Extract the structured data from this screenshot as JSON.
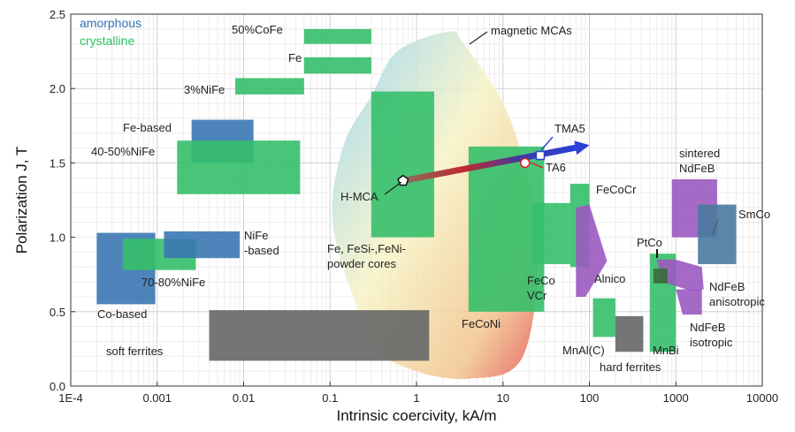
{
  "chart_data": {
    "type": "scatter",
    "xlabel": "Intrinsic coercivity, kA/m",
    "ylabel": "Polarization J, T",
    "xscale": "log",
    "xlim": [
      0.0001,
      10000
    ],
    "ylim": [
      0,
      2.5
    ],
    "grid": true,
    "x_ticks": [
      {
        "v": 0.0001,
        "label": "1E-4"
      },
      {
        "v": 0.001,
        "label": "0.001"
      },
      {
        "v": 0.01,
        "label": "0.01"
      },
      {
        "v": 0.1,
        "label": "0.1"
      },
      {
        "v": 1,
        "label": "1"
      },
      {
        "v": 10,
        "label": "10"
      },
      {
        "v": 100,
        "label": "100"
      },
      {
        "v": 1000,
        "label": "1000"
      },
      {
        "v": 10000,
        "label": "10000"
      }
    ],
    "y_ticks": [
      {
        "v": 0.0,
        "label": "0.0"
      },
      {
        "v": 0.5,
        "label": "0.5"
      },
      {
        "v": 1.0,
        "label": "1.0"
      },
      {
        "v": 1.5,
        "label": "1.5"
      },
      {
        "v": 2.0,
        "label": "2.0"
      },
      {
        "v": 2.5,
        "label": "2.5"
      }
    ],
    "legend": [
      {
        "label": "amorphous",
        "color": "#2f73b5"
      },
      {
        "label": "crystalline",
        "color": "#2fbf5f"
      }
    ],
    "colors": {
      "amorphous": "#3a78b2",
      "crystalline": "#35bf6a",
      "hard_ferrite": "#666666",
      "rare_earth": "#9b59c0",
      "steelblue": "#4a7aa0"
    },
    "regions": [
      {
        "id": "50cofe",
        "label": "50%CoFe",
        "color": "crystalline",
        "x": [
          0.05,
          0.3
        ],
        "y": [
          2.3,
          2.4
        ]
      },
      {
        "id": "fe",
        "label": "Fe",
        "color": "crystalline",
        "x": [
          0.05,
          0.3
        ],
        "y": [
          2.1,
          2.21
        ]
      },
      {
        "id": "3nife",
        "label": "3%NiFe",
        "color": "crystalline",
        "x": [
          0.008,
          0.05
        ],
        "y": [
          1.96,
          2.07
        ]
      },
      {
        "id": "fe-based",
        "label": "Fe-based",
        "color": "amorphous",
        "x": [
          0.0025,
          0.013
        ],
        "y": [
          1.5,
          1.79
        ]
      },
      {
        "id": "40-50nife",
        "label": "40-50%NiFe",
        "color": "crystalline",
        "x": [
          0.0017,
          0.045
        ],
        "y": [
          1.29,
          1.65
        ]
      },
      {
        "id": "co-based",
        "label": "Co-based",
        "color": "amorphous",
        "x": [
          0.0002,
          0.00095
        ],
        "y": [
          0.55,
          1.03
        ]
      },
      {
        "id": "70-80nife",
        "label": "70-80%NiFe",
        "color": "crystalline",
        "x": [
          0.0004,
          0.0028
        ],
        "y": [
          0.78,
          0.99
        ]
      },
      {
        "id": "nife-based",
        "label": "NiFe\n-based",
        "color": "amorphous",
        "x": [
          0.0012,
          0.009
        ],
        "y": [
          0.86,
          1.04
        ]
      },
      {
        "id": "soft-ferrites",
        "label": "soft ferrites",
        "color": "hard_ferrite",
        "x": [
          0.004,
          1.4
        ],
        "y": [
          0.17,
          0.51
        ]
      },
      {
        "id": "powder-cores",
        "label": "Fe, FeSi-,FeNi-\npowder cores",
        "color": "crystalline",
        "x": [
          0.3,
          1.6
        ],
        "y": [
          1.0,
          1.98
        ]
      },
      {
        "id": "feconi",
        "label": "FeCoNi",
        "color": "crystalline",
        "x": [
          4,
          30
        ],
        "y": [
          0.5,
          1.61
        ]
      },
      {
        "id": "fecovcr",
        "label": "FeCo\nVCr",
        "color": "crystalline",
        "x": [
          22,
          60
        ],
        "y": [
          0.82,
          1.23
        ]
      },
      {
        "id": "fecocr",
        "label": "FeCoCr",
        "color": "crystalline",
        "x": [
          60,
          100
        ],
        "y": [
          0.8,
          1.36
        ]
      },
      {
        "id": "mnalc",
        "label": "MnAl(C)",
        "color": "crystalline",
        "x": [
          110,
          200
        ],
        "y": [
          0.33,
          0.59
        ]
      },
      {
        "id": "hard-ferrites",
        "label": "hard ferrites",
        "color": "hard_ferrite",
        "x": [
          200,
          420
        ],
        "y": [
          0.23,
          0.47
        ]
      },
      {
        "id": "mnbi",
        "label": "MnBi",
        "color": "crystalline",
        "x": [
          500,
          1000
        ],
        "y": [
          0.23,
          0.89
        ]
      },
      {
        "id": "sintered-ndfeb",
        "label": "sintered\nNdFeB",
        "color": "rare_earth",
        "x": [
          900,
          3000
        ],
        "y": [
          1.0,
          1.39
        ]
      },
      {
        "id": "smco",
        "label": "SmCo",
        "color": "steelblue",
        "x": [
          1800,
          5000
        ],
        "y": [
          0.82,
          1.22
        ]
      }
    ],
    "alnico": {
      "label": "Alnico",
      "color": "rare_earth",
      "points": [
        [
          70,
          1.2
        ],
        [
          100,
          1.22
        ],
        [
          160,
          0.84
        ],
        [
          90,
          0.6
        ],
        [
          70,
          0.6
        ]
      ]
    },
    "ndfeb_anisotropic": {
      "label": "NdFeB\nanisotropic",
      "color": "rare_earth",
      "points": [
        [
          600,
          0.85
        ],
        [
          1000,
          0.85
        ],
        [
          2000,
          0.8
        ],
        [
          2100,
          0.65
        ],
        [
          1500,
          0.64
        ],
        [
          700,
          0.7
        ]
      ]
    },
    "ndfeb_isotropic": {
      "label": "NdFeB\nisotropic",
      "color": "rare_earth",
      "points": [
        [
          1000,
          0.65
        ],
        [
          2000,
          0.65
        ],
        [
          2000,
          0.48
        ],
        [
          1200,
          0.48
        ]
      ]
    },
    "ptco": {
      "label": "PtCo",
      "points": [
        [
          550,
          0.69
        ],
        [
          800,
          0.69
        ],
        [
          800,
          0.79
        ],
        [
          550,
          0.79
        ]
      ]
    },
    "mca_region": {
      "label": "magnetic MCAs",
      "points": [
        [
          0.3,
          1.95
        ],
        [
          0.6,
          2.25
        ],
        [
          2.3,
          2.38
        ],
        [
          3.5,
          2.3
        ],
        [
          12,
          1.8
        ],
        [
          25,
          1.0
        ],
        [
          17,
          0.2
        ],
        [
          4,
          0.05
        ],
        [
          0.8,
          0.12
        ],
        [
          0.3,
          0.32
        ],
        [
          0.11,
          1.05
        ],
        [
          0.14,
          1.6
        ]
      ]
    },
    "markers": [
      {
        "id": "h-mca",
        "label": "H-MCA",
        "x": 0.7,
        "y": 1.38,
        "shape": "pentagon"
      },
      {
        "id": "tma5",
        "label": "TMA5",
        "x": 27,
        "y": 1.55,
        "shape": "square"
      },
      {
        "id": "ta6",
        "label": "TA6",
        "x": 18,
        "y": 1.5,
        "shape": "circle"
      }
    ],
    "arrow": {
      "from": [
        0.7,
        1.38
      ],
      "to": [
        100,
        1.62
      ]
    }
  }
}
